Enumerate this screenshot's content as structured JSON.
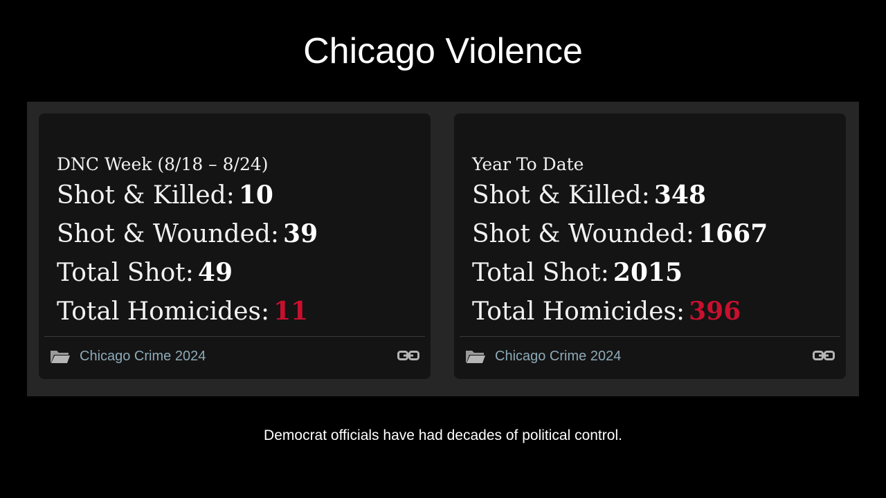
{
  "slide": {
    "title": "Chicago Violence",
    "caption": "Democrat officials have had decades of political control."
  },
  "cards": [
    {
      "heading": "DNC Week (8/18 – 8/24)",
      "stats": [
        {
          "label": "Shot & Killed:",
          "value": "10"
        },
        {
          "label": "Shot & Wounded:",
          "value": "39"
        },
        {
          "label": "Total Shot:",
          "value": "49"
        },
        {
          "label": "Total Homicides:",
          "value": "11"
        }
      ],
      "footer": {
        "category": "Chicago Crime 2024",
        "folder_icon": "folder-icon",
        "link_icon": "link-icon"
      }
    },
    {
      "heading": "Year To Date",
      "stats": [
        {
          "label": "Shot & Killed:",
          "value": "348"
        },
        {
          "label": "Shot & Wounded:",
          "value": "1667"
        },
        {
          "label": "Total Shot:",
          "value": "2015"
        },
        {
          "label": "Total Homicides:",
          "value": "396"
        }
      ],
      "footer": {
        "category": "Chicago Crime 2024",
        "folder_icon": "folder-icon",
        "link_icon": "link-icon"
      }
    }
  ],
  "colors": {
    "background": "#000000",
    "panel": "#262626",
    "card": "#141414",
    "homicide_accent": "#c8102e",
    "footer_link": "#8eaab8"
  }
}
